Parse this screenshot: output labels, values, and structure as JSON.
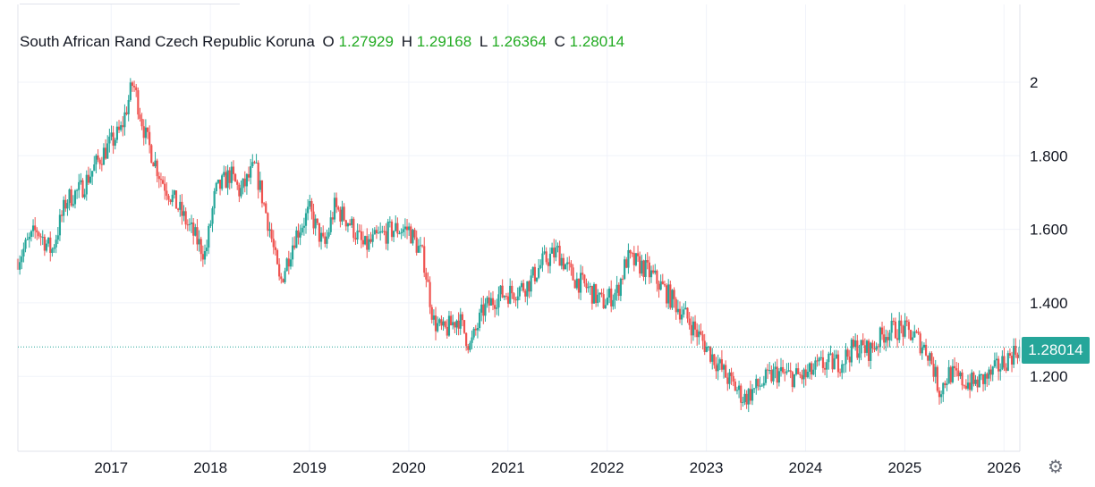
{
  "legend": {
    "symbol": "South African Rand Czech Republic Koruna",
    "o_label": "O",
    "o_value": "1.27929",
    "h_label": "H",
    "h_value": "1.29168",
    "l_label": "L",
    "l_value": "1.26364",
    "c_label": "C",
    "c_value": "1.28014"
  },
  "last_price_tag": "1.28014",
  "colors": {
    "up": "#26a69a",
    "down": "#ef5350",
    "grid": "#f0f3fa",
    "legend_values": "#22ab22"
  },
  "icons": {
    "settings": "gear-icon"
  },
  "chart_data": {
    "type": "candlestick",
    "x_tick_labels": [
      "2017",
      "2018",
      "2019",
      "2020",
      "2021",
      "2022",
      "2023",
      "2024",
      "2025",
      "2026"
    ],
    "y_tick_labels": [
      "2",
      "1.800",
      "1.600",
      "1.400",
      "1.200"
    ],
    "y_ticks": [
      2.0,
      1.8,
      1.6,
      1.4,
      1.2
    ],
    "ylim": [
      1.0,
      2.2
    ],
    "xlim": [
      2016.06,
      2026.16
    ],
    "last_close": 1.28014,
    "grid": true,
    "trend": [
      [
        2016.06,
        1.52
      ],
      [
        2016.25,
        1.6
      ],
      [
        2016.4,
        1.54
      ],
      [
        2016.55,
        1.68
      ],
      [
        2016.7,
        1.71
      ],
      [
        2016.9,
        1.8
      ],
      [
        2017.1,
        1.87
      ],
      [
        2017.22,
        2.0
      ],
      [
        2017.35,
        1.85
      ],
      [
        2017.5,
        1.74
      ],
      [
        2017.65,
        1.67
      ],
      [
        2017.8,
        1.6
      ],
      [
        2017.95,
        1.53
      ],
      [
        2018.05,
        1.7
      ],
      [
        2018.2,
        1.75
      ],
      [
        2018.3,
        1.7
      ],
      [
        2018.45,
        1.77
      ],
      [
        2018.6,
        1.6
      ],
      [
        2018.7,
        1.45
      ],
      [
        2018.85,
        1.58
      ],
      [
        2019.0,
        1.65
      ],
      [
        2019.15,
        1.55
      ],
      [
        2019.25,
        1.66
      ],
      [
        2019.4,
        1.62
      ],
      [
        2019.55,
        1.55
      ],
      [
        2019.7,
        1.58
      ],
      [
        2019.85,
        1.6
      ],
      [
        2020.0,
        1.6
      ],
      [
        2020.15,
        1.52
      ],
      [
        2020.25,
        1.35
      ],
      [
        2020.35,
        1.32
      ],
      [
        2020.5,
        1.36
      ],
      [
        2020.62,
        1.28
      ],
      [
        2020.75,
        1.38
      ],
      [
        2020.9,
        1.42
      ],
      [
        2021.05,
        1.43
      ],
      [
        2021.2,
        1.45
      ],
      [
        2021.35,
        1.51
      ],
      [
        2021.5,
        1.54
      ],
      [
        2021.65,
        1.47
      ],
      [
        2021.8,
        1.44
      ],
      [
        2021.95,
        1.4
      ],
      [
        2022.1,
        1.43
      ],
      [
        2022.2,
        1.52
      ],
      [
        2022.35,
        1.5
      ],
      [
        2022.5,
        1.46
      ],
      [
        2022.65,
        1.41
      ],
      [
        2022.8,
        1.36
      ],
      [
        2022.9,
        1.32
      ],
      [
        2023.05,
        1.26
      ],
      [
        2023.2,
        1.2
      ],
      [
        2023.38,
        1.14
      ],
      [
        2023.55,
        1.18
      ],
      [
        2023.7,
        1.21
      ],
      [
        2023.85,
        1.2
      ],
      [
        2024.0,
        1.2
      ],
      [
        2024.15,
        1.23
      ],
      [
        2024.35,
        1.24
      ],
      [
        2024.5,
        1.28
      ],
      [
        2024.65,
        1.27
      ],
      [
        2024.8,
        1.32
      ],
      [
        2024.95,
        1.33
      ],
      [
        2025.1,
        1.31
      ],
      [
        2025.25,
        1.26
      ],
      [
        2025.35,
        1.16
      ],
      [
        2025.45,
        1.21
      ],
      [
        2025.55,
        1.19
      ],
      [
        2025.7,
        1.18
      ],
      [
        2025.85,
        1.2
      ],
      [
        2026.0,
        1.24
      ],
      [
        2026.16,
        1.28
      ]
    ]
  }
}
